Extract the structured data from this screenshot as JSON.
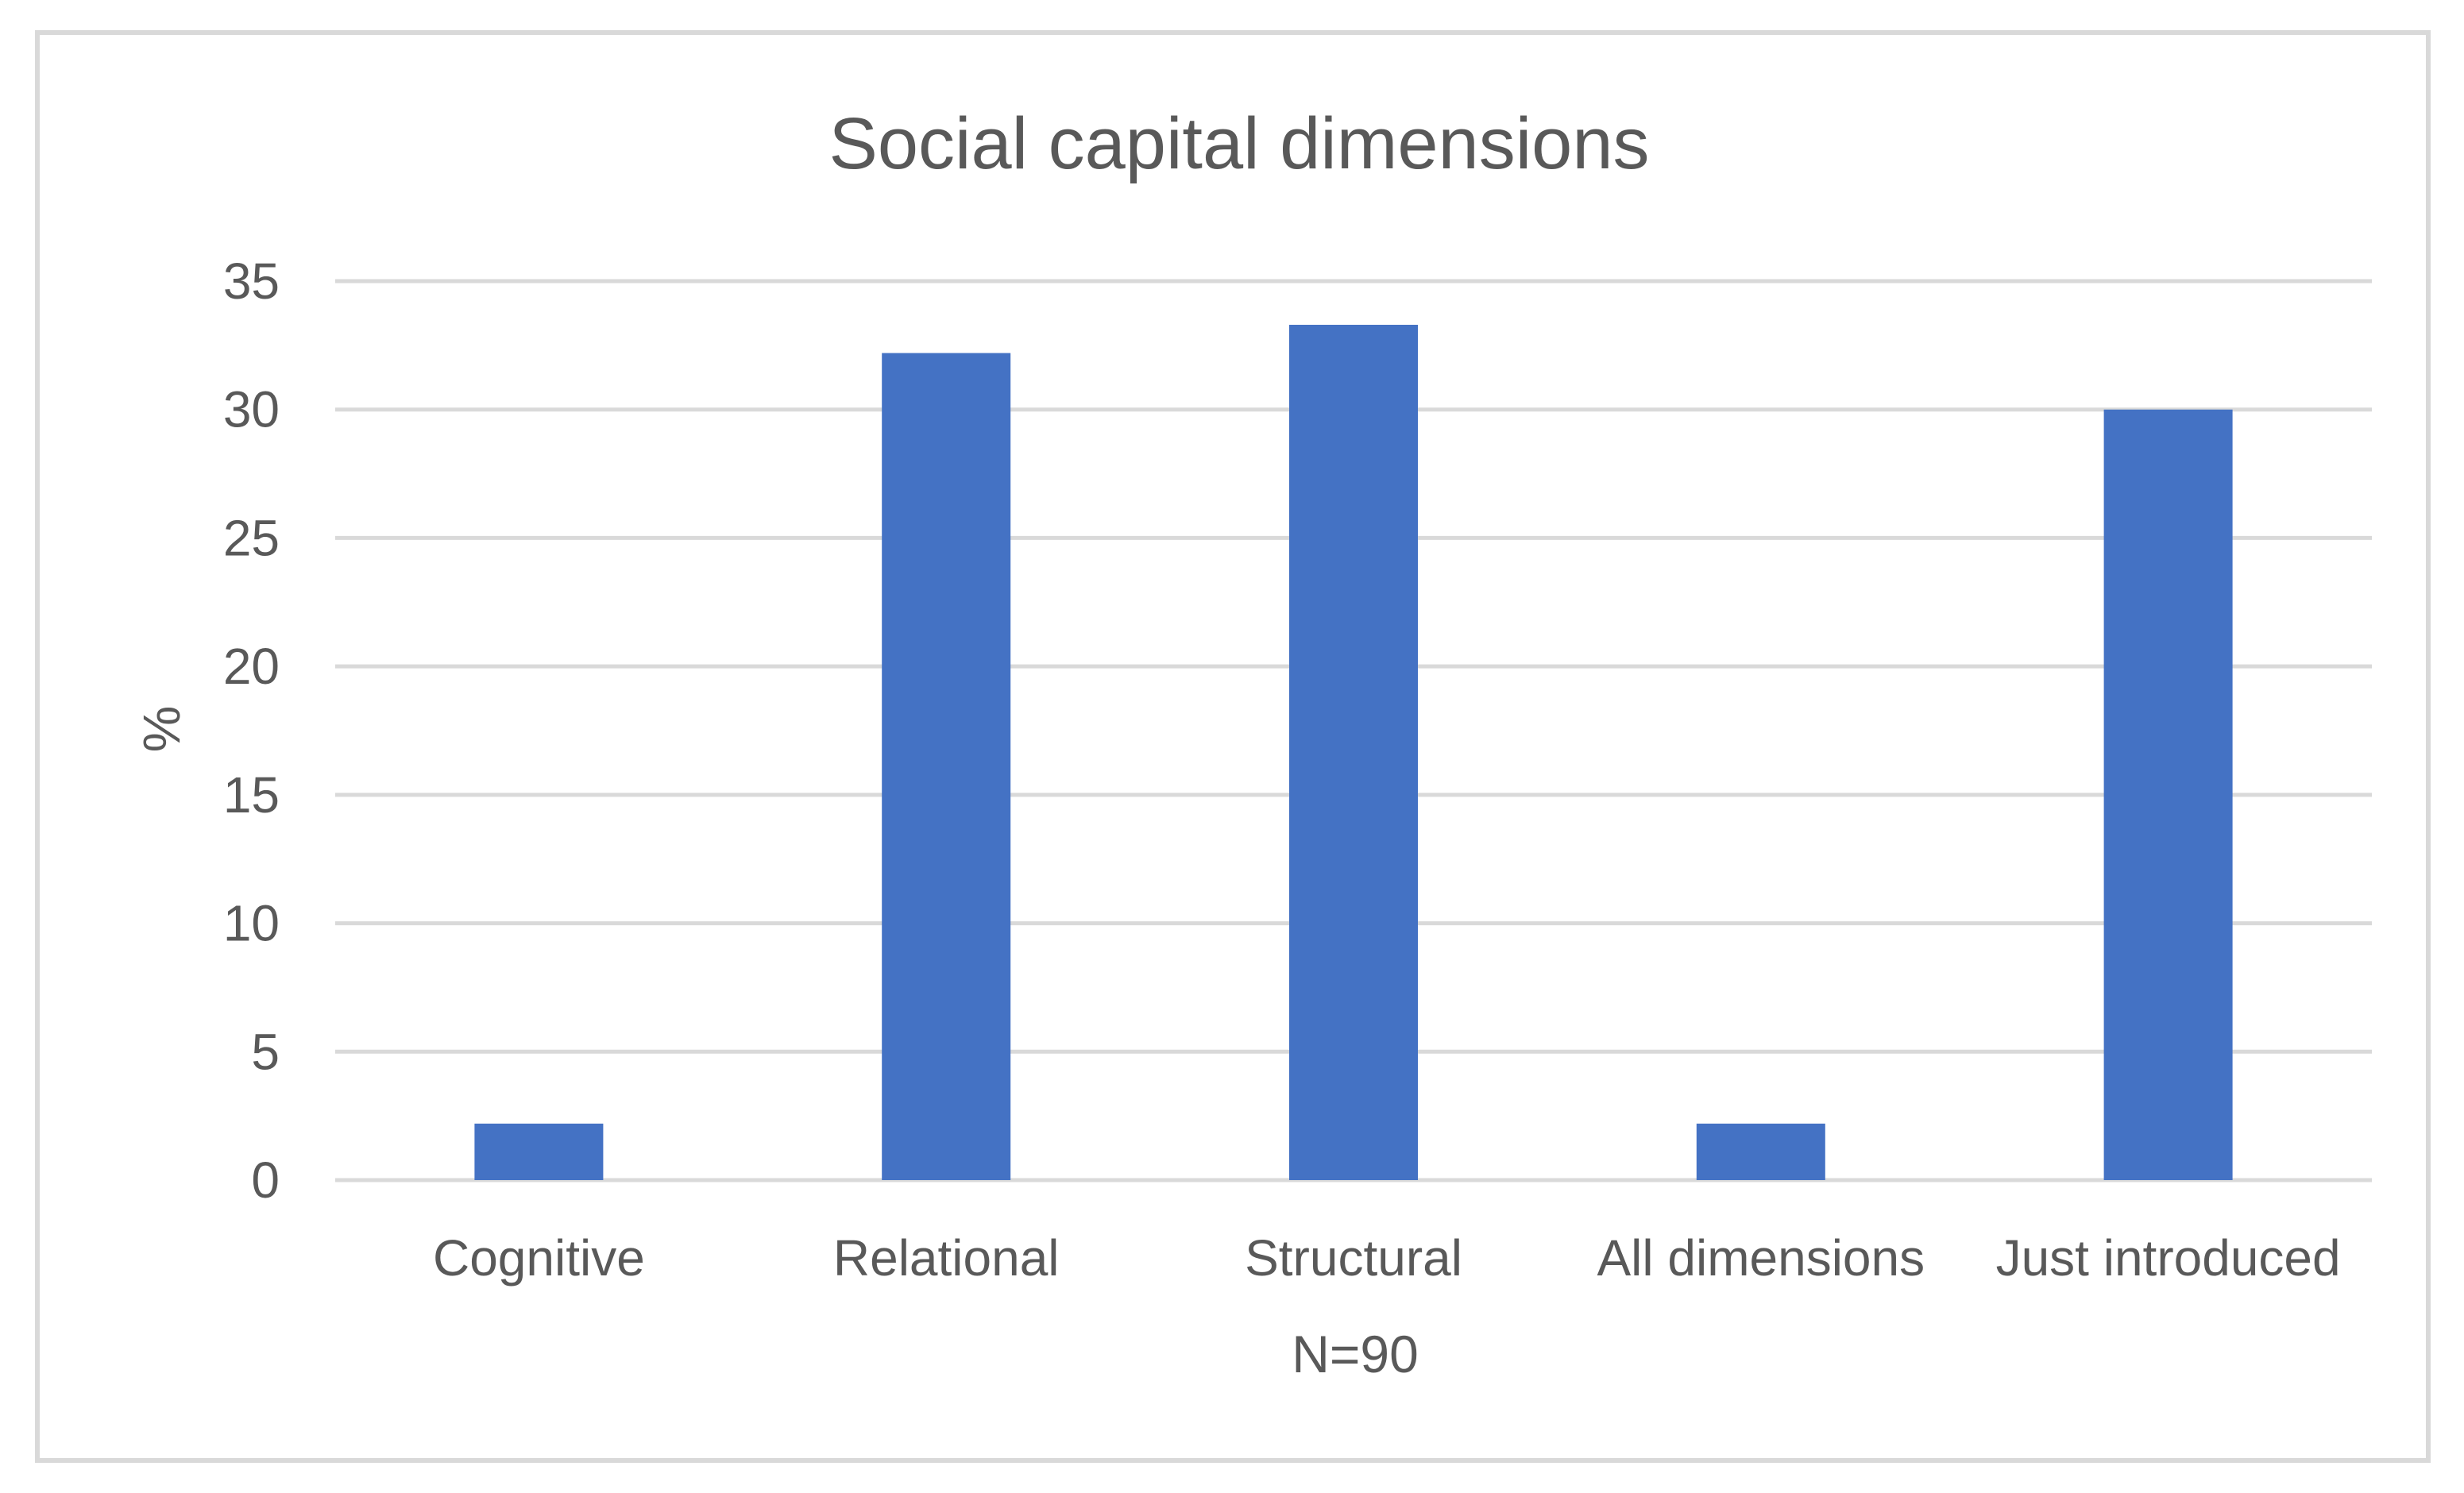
{
  "chart_data": {
    "type": "bar",
    "title": "Social capital dimensions",
    "xlabel": "N=90",
    "ylabel": "%",
    "categories": [
      "Cognitive",
      "Relational",
      "Structural",
      "All dimensions",
      "Just introduced"
    ],
    "values": [
      2.2,
      32.2,
      33.3,
      2.2,
      30
    ],
    "ylim": [
      0,
      35
    ],
    "yticks": [
      "0",
      "5",
      "10",
      "15",
      "20",
      "25",
      "30",
      "35"
    ],
    "grid": true,
    "legend": "none",
    "bar_color": "#4472c4"
  }
}
